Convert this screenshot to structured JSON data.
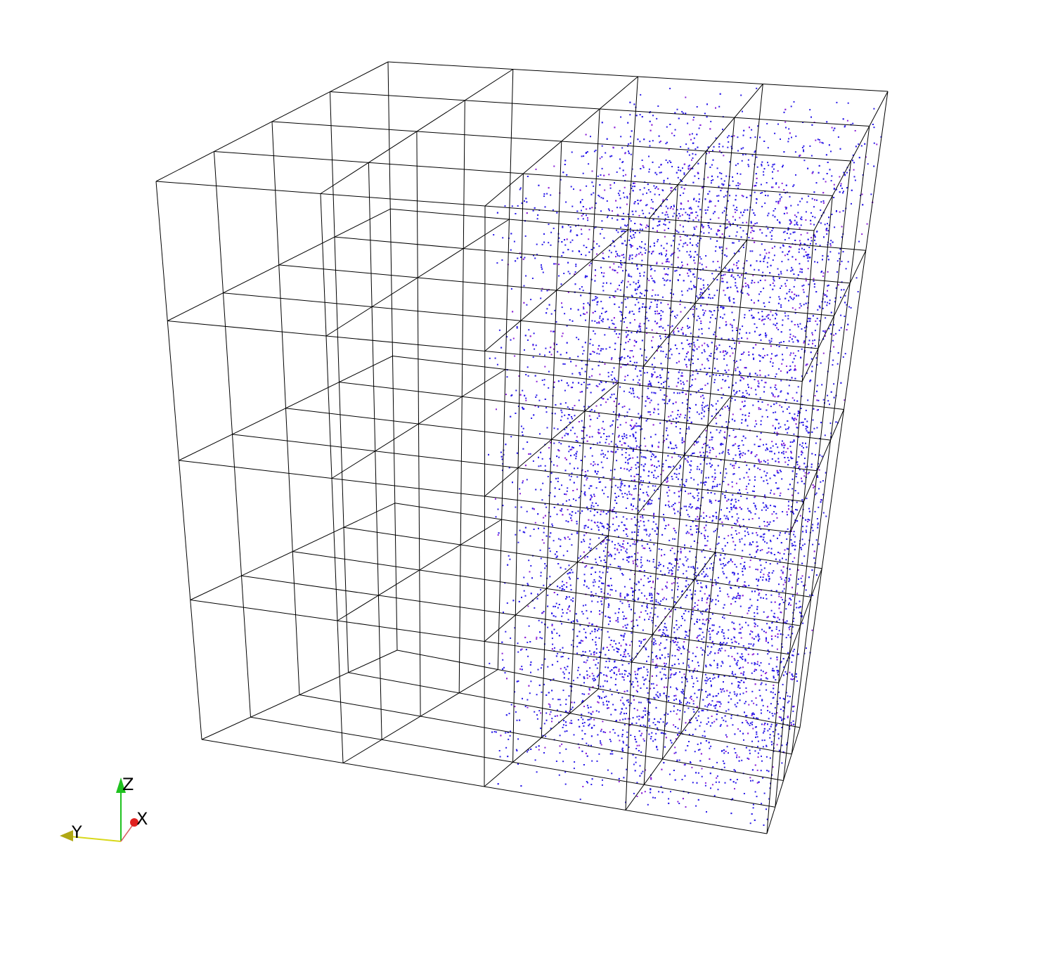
{
  "scene": {
    "wireframe_color": "#000000",
    "particle_color": "#2b1ce8",
    "particle_accent_color": "#8a1fd8",
    "grid_divisions": 4
  },
  "orientation_triad": {
    "x_label": "X",
    "y_label": "Y",
    "z_label": "Z",
    "x_color": "#e0201f",
    "y_color": "#d8d81a",
    "z_color": "#1fc21f"
  }
}
